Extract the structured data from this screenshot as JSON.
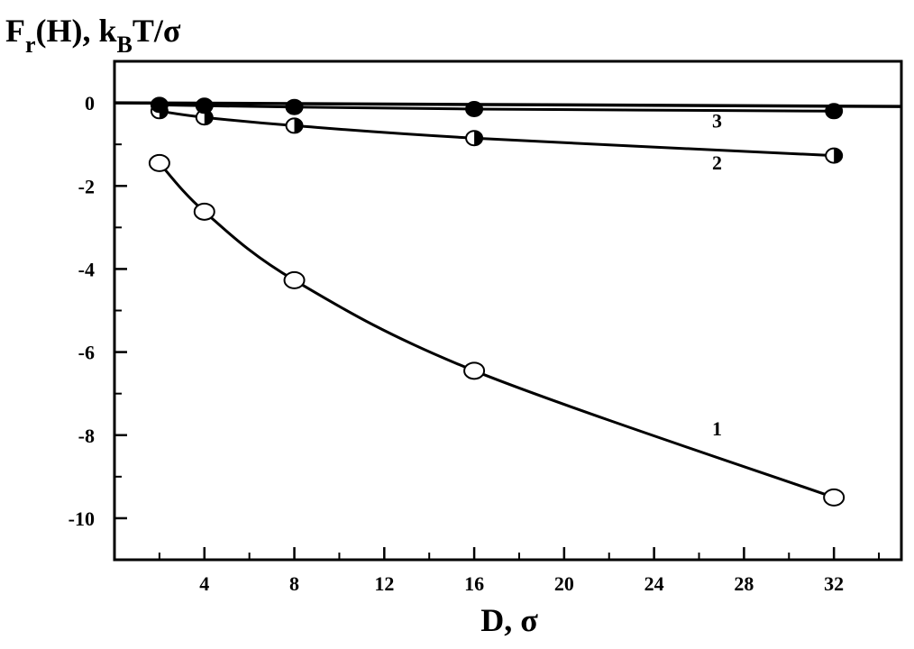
{
  "chart_data": {
    "type": "line",
    "title": "",
    "ylabel": {
      "main": "F",
      "sub": "r",
      "rest": "(H), k",
      "sub2": "B",
      "rest2": "T/σ"
    },
    "xlabel": "D, σ",
    "xlim": [
      0,
      35
    ],
    "ylim": [
      -11,
      1
    ],
    "x_ticks": [
      4,
      8,
      12,
      16,
      20,
      24,
      28,
      32
    ],
    "x_tick_labels": [
      "4",
      "8",
      "12",
      "16",
      "20",
      "24",
      "28",
      "32"
    ],
    "y_ticks": [
      0,
      -2,
      -4,
      -6,
      -8,
      -10
    ],
    "y_tick_labels": [
      "0",
      "-2",
      "-4",
      "-6",
      "-8",
      "-10"
    ],
    "zero_line": true,
    "grid": false,
    "series": [
      {
        "label": "1",
        "marker": "open",
        "x": [
          2,
          4,
          8,
          16,
          32
        ],
        "y": [
          -1.45,
          -2.62,
          -4.27,
          -6.45,
          -9.5
        ],
        "label_at": [
          26.8,
          -8.0
        ]
      },
      {
        "label": "2",
        "marker": "half",
        "x": [
          2,
          4,
          8,
          16,
          32
        ],
        "y": [
          -0.2,
          -0.35,
          -0.55,
          -0.85,
          -1.27
        ],
        "label_at": [
          26.8,
          -1.6
        ]
      },
      {
        "label": "3",
        "marker": "filled",
        "x": [
          2,
          4,
          8,
          16,
          32
        ],
        "y": [
          -0.05,
          -0.07,
          -0.1,
          -0.15,
          -0.2
        ],
        "label_at": [
          26.8,
          -0.6
        ]
      }
    ]
  }
}
